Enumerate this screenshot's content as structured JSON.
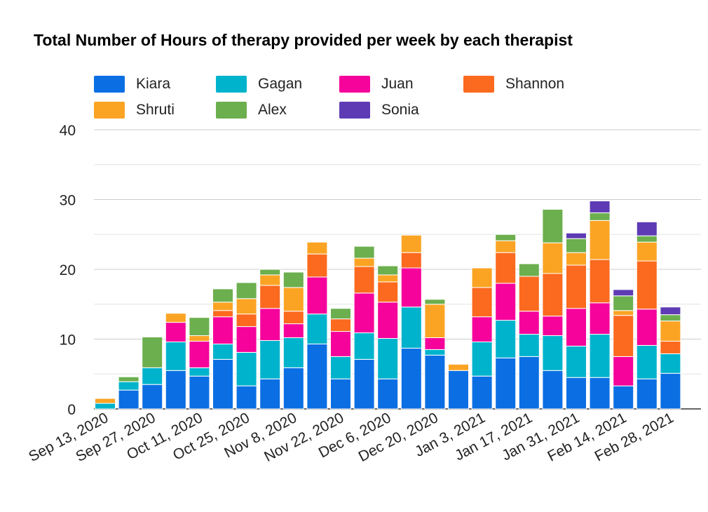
{
  "chart_data": {
    "type": "bar",
    "stacked": true,
    "title": "Total Number of Hours of therapy provided per week by each therapist",
    "xlabel": "",
    "ylabel": "",
    "ylim": [
      0,
      40
    ],
    "yticks": [
      0,
      10,
      20,
      30,
      40
    ],
    "grid": true,
    "legend_position": "top",
    "x_tick_labels": [
      "Sep 13, 2020",
      "Sep 27, 2020",
      "Oct 11, 2020",
      "Oct 25, 2020",
      "Nov 8, 2020",
      "Nov 22, 2020",
      "Dec 6, 2020",
      "Dec 20, 2020",
      "Jan 3, 2021",
      "Jan 17, 2021",
      "Jan 31, 2021",
      "Feb 14, 2021",
      "Feb 28, 2021"
    ],
    "categories": [
      "Sep 13, 2020",
      "Sep 20, 2020",
      "Sep 27, 2020",
      "Oct 4, 2020",
      "Oct 11, 2020",
      "Oct 18, 2020",
      "Oct 25, 2020",
      "Nov 1, 2020",
      "Nov 8, 2020",
      "Nov 15, 2020",
      "Nov 22, 2020",
      "Nov 29, 2020",
      "Dec 6, 2020",
      "Dec 13, 2020",
      "Dec 20, 2020",
      "Dec 27, 2020",
      "Jan 3, 2021",
      "Jan 10, 2021",
      "Jan 17, 2021",
      "Jan 24, 2021",
      "Jan 31, 2021",
      "Feb 7, 2021",
      "Feb 14, 2021",
      "Feb 21, 2021",
      "Feb 28, 2021"
    ],
    "series": [
      {
        "name": "Kiara",
        "color": "#0b6fe3",
        "values": [
          0,
          2.7,
          3.5,
          5.5,
          4.7,
          7.1,
          3.3,
          4.3,
          5.9,
          9.3,
          4.3,
          7.1,
          4.3,
          8.7,
          7.7,
          5.5,
          4.7,
          7.3,
          7.5,
          5.5,
          4.5,
          4.5,
          3.3,
          4.3,
          5.1
        ]
      },
      {
        "name": "Gagan",
        "color": "#00b3cc",
        "values": [
          0.8,
          1.2,
          2.4,
          4.1,
          1.2,
          2.2,
          4.8,
          5.5,
          4.3,
          4.3,
          3.2,
          3.8,
          5.8,
          5.9,
          0.8,
          0,
          4.9,
          5.4,
          3.2,
          5.0,
          4.5,
          6.2,
          0,
          4.8,
          2.8
        ]
      },
      {
        "name": "Juan",
        "color": "#f5039b",
        "values": [
          0,
          0,
          0,
          2.8,
          3.8,
          3.9,
          3.7,
          4.6,
          2.0,
          5.3,
          3.6,
          5.7,
          5.2,
          5.6,
          1.7,
          0,
          3.6,
          5.3,
          3.3,
          2.8,
          5.4,
          4.5,
          4.2,
          5.2,
          0
        ]
      },
      {
        "name": "Shannon",
        "color": "#fb6a1e",
        "values": [
          0,
          0,
          0,
          0,
          0,
          0.9,
          1.8,
          3.3,
          1.8,
          3.3,
          1.8,
          3.8,
          2.9,
          2.2,
          0,
          0,
          4.2,
          4.4,
          5.0,
          6.1,
          6.2,
          6.2,
          5.9,
          6.9,
          1.8
        ]
      },
      {
        "name": "Shruti",
        "color": "#fba424",
        "values": [
          0.7,
          0,
          0,
          1.3,
          0.8,
          1.2,
          2.2,
          1.5,
          3.4,
          1.7,
          0,
          1.2,
          1.0,
          2.5,
          4.8,
          0.9,
          2.8,
          1.7,
          0,
          4.4,
          1.8,
          5.6,
          0.7,
          2.7,
          2.9
        ]
      },
      {
        "name": "Alex",
        "color": "#6caf4e",
        "values": [
          0,
          0.7,
          4.4,
          0,
          2.6,
          1.9,
          2.3,
          0.8,
          2.2,
          0,
          1.5,
          1.7,
          1.3,
          0,
          0.7,
          0,
          0,
          0.9,
          1.8,
          4.8,
          2.0,
          1.1,
          2.1,
          0.9,
          0.9
        ]
      },
      {
        "name": "Sonia",
        "color": "#5e3bb4",
        "values": [
          0,
          0,
          0,
          0,
          0,
          0,
          0,
          0,
          0,
          0,
          0,
          0,
          0,
          0,
          0,
          0,
          0,
          0,
          0,
          0,
          0.8,
          1.7,
          0.9,
          2.0,
          1.1
        ]
      }
    ]
  }
}
